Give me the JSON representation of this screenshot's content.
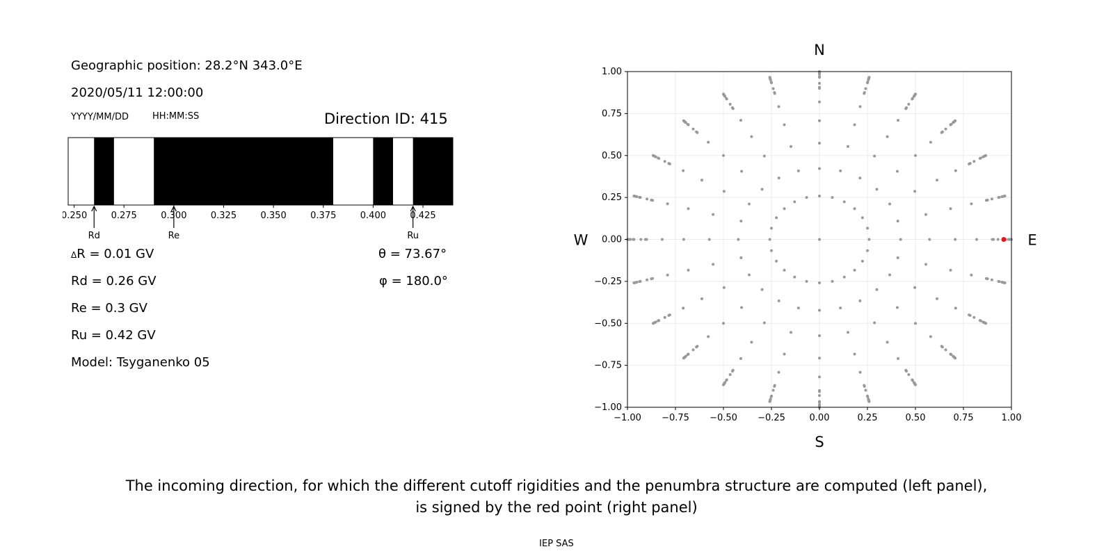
{
  "left_panel": {
    "geo_position": "Geographic position: 28.2°N 343.0°E",
    "datetime": "2020/05/11 12:00:00",
    "date_format": "YYYY/MM/DD",
    "time_format": "HH:MM:SS",
    "direction_id": "Direction ID: 415",
    "delta_r": "R = 0.01 GV",
    "delta_symbol": "Δ",
    "rd": "Rd = 0.26 GV",
    "re": "Re = 0.3 GV",
    "ru": "Ru = 0.42 GV",
    "model": "Model: Tsyganenko 05",
    "theta": "θ = 73.67°",
    "phi": "φ = 180.0°"
  },
  "caption": {
    "line1": "The incoming direction, for which the different cutoff rigidities and the penumbra structure are computed (left panel),",
    "line2": "is signed by the red point (right panel)"
  },
  "footer": "IEP SAS",
  "chart_data": [
    {
      "type": "bar",
      "description_kind": "penumbra",
      "xlim": [
        0.247,
        0.44
      ],
      "xticks": [
        "0.250",
        "0.275",
        "0.300",
        "0.325",
        "0.350",
        "0.375",
        "0.400",
        "0.425"
      ],
      "xtick_values": [
        0.25,
        0.275,
        0.3,
        0.325,
        0.35,
        0.375,
        0.4,
        0.425
      ],
      "segments": [
        {
          "from": 0.247,
          "to": 0.26,
          "color": "white"
        },
        {
          "from": 0.26,
          "to": 0.27,
          "color": "black"
        },
        {
          "from": 0.27,
          "to": 0.29,
          "color": "white"
        },
        {
          "from": 0.29,
          "to": 0.38,
          "color": "black"
        },
        {
          "from": 0.38,
          "to": 0.4,
          "color": "white"
        },
        {
          "from": 0.4,
          "to": 0.41,
          "color": "black"
        },
        {
          "from": 0.41,
          "to": 0.42,
          "color": "white"
        },
        {
          "from": 0.42,
          "to": 0.44,
          "color": "black"
        }
      ],
      "markers": [
        {
          "label": "Rd",
          "value": 0.26
        },
        {
          "label": "Re",
          "value": 0.3
        },
        {
          "label": "Ru",
          "value": 0.42
        }
      ]
    },
    {
      "type": "scatter",
      "xlim": [
        -1.0,
        1.0
      ],
      "ylim": [
        -1.0,
        1.0
      ],
      "xticks": [
        "−1.00",
        "−0.75",
        "−0.50",
        "−0.25",
        "0.00",
        "0.25",
        "0.50",
        "0.75",
        "1.00"
      ],
      "yticks": [
        "1.00",
        "0.75",
        "0.50",
        "0.25",
        "0.00",
        "−0.25",
        "−0.50",
        "−0.75",
        "−1.00"
      ],
      "tick_values": [
        -1.0,
        -0.75,
        -0.5,
        -0.25,
        0.0,
        0.25,
        0.5,
        0.75,
        1.0
      ],
      "grid": true,
      "compass": {
        "north": "N",
        "south": "S",
        "west": "W",
        "east": "E"
      },
      "zeniths_deg": [
        0,
        15,
        25,
        35,
        45,
        55,
        65,
        75,
        80,
        85,
        90
      ],
      "azimuth_step_deg": 15,
      "point_color": "#999999",
      "highlight": {
        "x": 0.96,
        "y": 0.0,
        "color": "#e8141c"
      }
    }
  ]
}
